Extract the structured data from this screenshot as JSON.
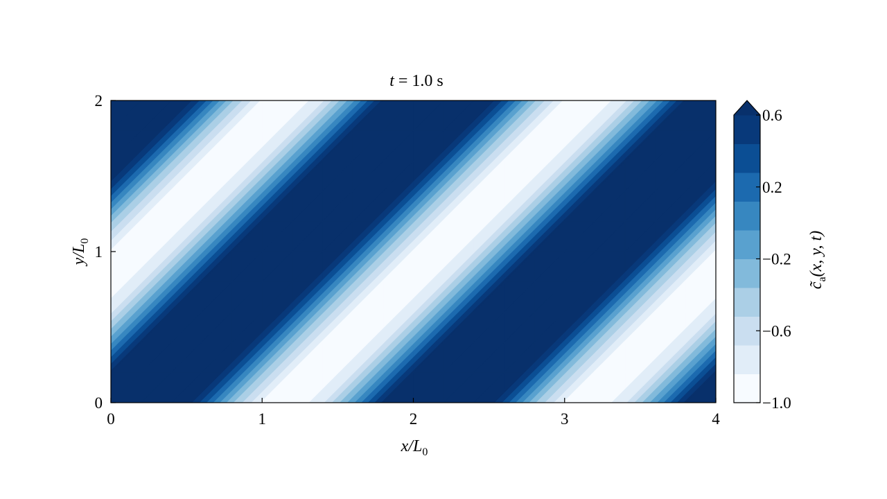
{
  "chart_data": {
    "type": "heatmap",
    "subtype": "filled-contour",
    "title": "t = 1.0 s",
    "xlabel": {
      "main": "x/L",
      "sub": "0"
    },
    "ylabel": {
      "main": "y/L",
      "sub": "0"
    },
    "xlim": [
      0,
      4
    ],
    "ylim": [
      0,
      2
    ],
    "xticks": [
      "0",
      "1",
      "2",
      "3",
      "4"
    ],
    "yticks": [
      "0",
      "1",
      "2"
    ],
    "grid": false,
    "x": [
      0,
      0.2,
      0.4,
      0.6,
      0.8,
      1.0,
      1.2,
      1.4,
      1.6,
      1.8,
      2.0,
      2.2,
      2.4,
      2.6,
      2.8,
      3.0,
      3.2,
      3.4,
      3.6,
      3.8,
      4.0
    ],
    "y": [
      0,
      0.2,
      0.4,
      0.6,
      0.8,
      1.0,
      1.2,
      1.4,
      1.6,
      1.8,
      2.0
    ],
    "z": [
      [
        1.18,
        1.32,
        1.02,
        0.39,
        -0.34,
        -0.88,
        -0.99,
        -0.72,
        -0.09,
        0.64,
        1.18,
        1.32,
        1.02,
        0.39,
        -0.34,
        -0.88,
        -0.99,
        -0.72,
        -0.09,
        0.64,
        1.18
      ],
      [
        0.64,
        1.18,
        1.32,
        1.02,
        0.39,
        -0.34,
        -0.88,
        -0.99,
        -0.72,
        -0.09,
        0.64,
        1.18,
        1.32,
        1.02,
        0.39,
        -0.34,
        -0.88,
        -0.99,
        -0.72,
        -0.09,
        0.64
      ],
      [
        -0.09,
        0.64,
        1.18,
        1.32,
        1.02,
        0.39,
        -0.34,
        -0.88,
        -0.99,
        -0.72,
        -0.09,
        0.64,
        1.18,
        1.32,
        1.02,
        0.39,
        -0.34,
        -0.88,
        -0.99,
        -0.72,
        -0.09
      ],
      [
        -0.72,
        -0.09,
        0.64,
        1.18,
        1.32,
        1.02,
        0.39,
        -0.34,
        -0.88,
        -0.99,
        -0.72,
        -0.09,
        0.64,
        1.18,
        1.32,
        1.02,
        0.39,
        -0.34,
        -0.88,
        -0.99,
        -0.72
      ],
      [
        -0.99,
        -0.72,
        -0.09,
        0.64,
        1.18,
        1.32,
        1.02,
        0.39,
        -0.34,
        -0.88,
        -0.99,
        -0.72,
        -0.09,
        0.64,
        1.18,
        1.32,
        1.02,
        0.39,
        -0.34,
        -0.88,
        -0.99
      ],
      [
        -0.88,
        -0.99,
        -0.72,
        -0.09,
        0.64,
        1.18,
        1.32,
        1.02,
        0.39,
        -0.34,
        -0.88,
        -0.99,
        -0.72,
        -0.09,
        0.64,
        1.18,
        1.32,
        1.02,
        0.39,
        -0.34,
        -0.88
      ],
      [
        -0.34,
        -0.88,
        -0.99,
        -0.72,
        -0.09,
        0.64,
        1.18,
        1.32,
        1.02,
        0.39,
        -0.34,
        -0.88,
        -0.99,
        -0.72,
        -0.09,
        0.64,
        1.18,
        1.32,
        1.02,
        0.39,
        -0.34
      ],
      [
        0.39,
        -0.34,
        -0.88,
        -0.99,
        -0.72,
        -0.09,
        0.64,
        1.18,
        1.32,
        1.02,
        0.39,
        -0.34,
        -0.88,
        -0.99,
        -0.72,
        -0.09,
        0.64,
        1.18,
        1.32,
        1.02,
        0.39
      ],
      [
        1.02,
        0.39,
        -0.34,
        -0.88,
        -0.99,
        -0.72,
        -0.09,
        0.64,
        1.18,
        1.32,
        1.02,
        0.39,
        -0.34,
        -0.88,
        -0.99,
        -0.72,
        -0.09,
        0.64,
        1.18,
        1.32,
        1.02
      ],
      [
        1.32,
        1.02,
        0.39,
        -0.34,
        -0.88,
        -0.99,
        -0.72,
        -0.09,
        0.64,
        1.18,
        1.32,
        1.02,
        0.39,
        -0.34,
        -0.88,
        -0.99,
        -0.72,
        -0.09,
        0.64,
        1.18,
        1.32
      ],
      [
        1.18,
        1.32,
        1.02,
        0.39,
        -0.34,
        -0.88,
        -0.99,
        -0.72,
        -0.09,
        0.64,
        1.18,
        1.32,
        1.02,
        0.39,
        -0.34,
        -0.88,
        -0.99,
        -0.72,
        -0.09,
        0.64,
        1.18
      ]
    ],
    "levels": [
      -1.0,
      -0.84,
      -0.68,
      -0.52,
      -0.36,
      -0.2,
      -0.04,
      0.12,
      0.28,
      0.44,
      0.6
    ],
    "extend": "max",
    "colormap": "Blues",
    "colors": [
      "#f7fbff",
      "#e1edf8",
      "#cadef0",
      "#abcfe6",
      "#82badb",
      "#59a1cf",
      "#3787c0",
      "#1c6aaf",
      "#0b4e94",
      "#08397a"
    ],
    "extend_color": "#08306b",
    "colorbar": {
      "position": "right",
      "ticks": [
        "0.6",
        "0.2",
        "−0.2",
        "−0.6",
        "−1.0"
      ],
      "tick_values": [
        0.6,
        0.2,
        -0.2,
        -0.6,
        -1.0
      ],
      "label": {
        "main": "c̃",
        "sub": "a",
        "args": "(x, y, t)"
      }
    }
  }
}
